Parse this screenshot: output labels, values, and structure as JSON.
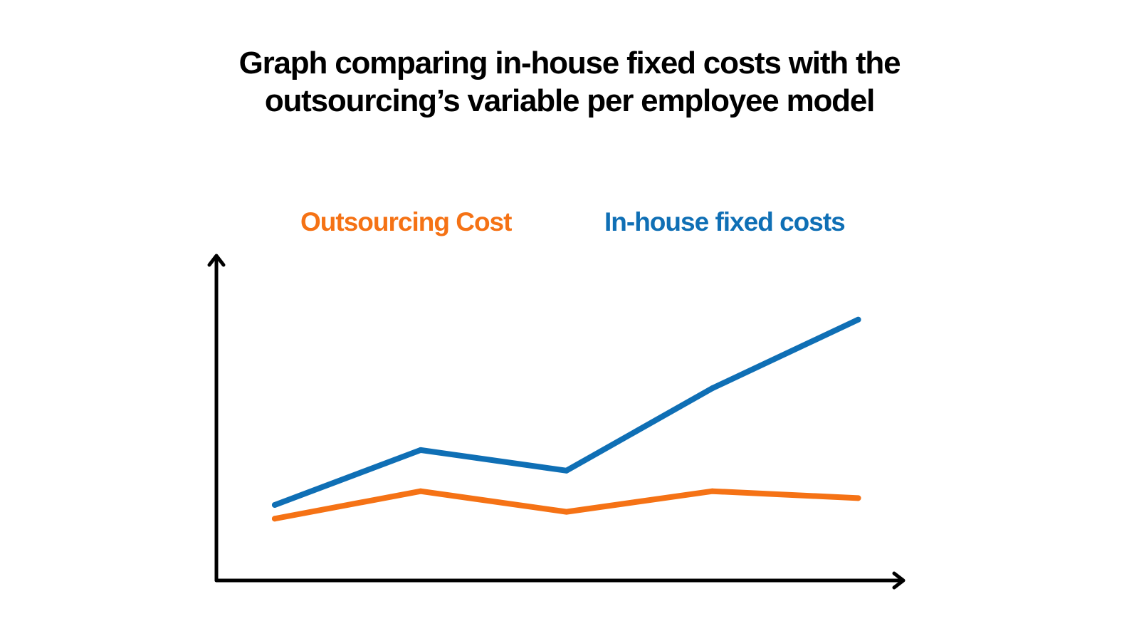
{
  "title_lines": [
    "Graph comparing in-house fixed costs with the",
    "outsourcing’s variable per employee model"
  ],
  "colors": {
    "background": "#ffffff",
    "text": "#000000",
    "axis": "#000000",
    "outsourcing": "#f57215",
    "inhouse": "#0f6fb5"
  },
  "chart_data": {
    "type": "line",
    "title": "Graph comparing in-house fixed costs with the outsourcing’s variable per employee model",
    "xlabel": "",
    "ylabel": "",
    "x": [
      1,
      2,
      3,
      4,
      5
    ],
    "xlim": [
      0.6,
      5.3
    ],
    "ylim": [
      0,
      47
    ],
    "axis_arrows": true,
    "grid": false,
    "tick_labels": false,
    "legend_placement": "top",
    "series": [
      {
        "name": "Outsourcing Cost",
        "color_key": "outsourcing",
        "values": [
          9,
          13,
          10,
          13,
          12
        ]
      },
      {
        "name": "In-house fixed costs",
        "color_key": "inhouse",
        "values": [
          11,
          19,
          16,
          28,
          38
        ]
      }
    ]
  }
}
